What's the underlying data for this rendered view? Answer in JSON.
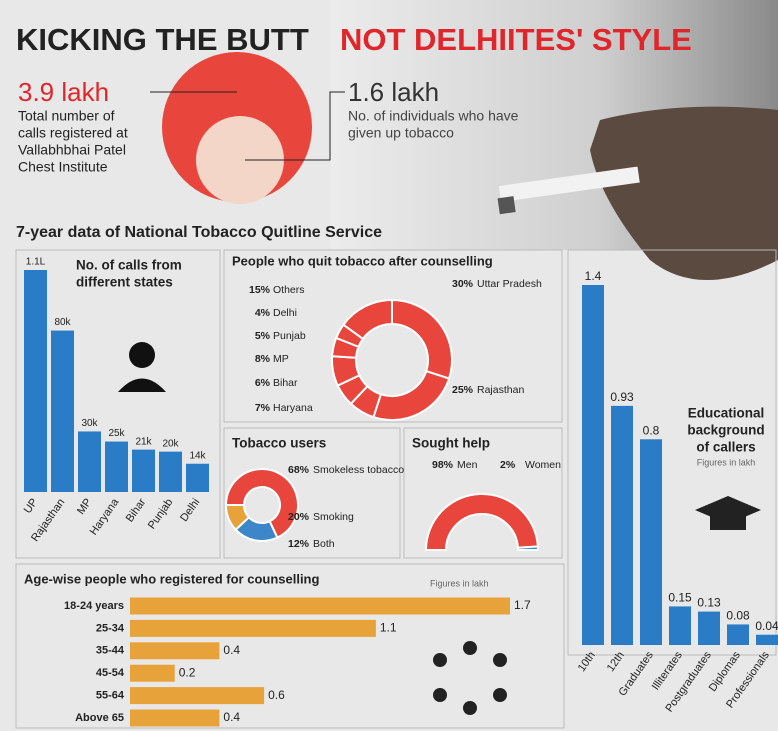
{
  "header": {
    "title_black": "KICKING THE BUTT",
    "title_red": "NOT DELHIITES' STYLE",
    "stats": [
      {
        "value": "3.9 lakh",
        "lines": [
          "Total number of",
          "calls registered at",
          "Vallabhbhai Patel",
          "Chest Institute"
        ]
      },
      {
        "value": "1.6 lakh",
        "lines": [
          "No. of individuals who have",
          "given up tobacco"
        ]
      }
    ],
    "section_title": "7-year data of National Tobacco Quitline Service"
  },
  "chart_data": [
    {
      "type": "bar",
      "title": [
        "No. of calls from",
        "different states"
      ],
      "categories": [
        "UP",
        "Rajasthan",
        "MP",
        "Haryana",
        "Bihar",
        "Punjab",
        "Delhi"
      ],
      "values": [
        110000,
        80000,
        30000,
        25000,
        21000,
        20000,
        14000
      ],
      "value_labels": [
        "1.1L",
        "80k",
        "30k",
        "25k",
        "21k",
        "20k",
        "14k"
      ],
      "color": "#2a7cc7"
    },
    {
      "type": "donut",
      "title": "People who quit tobacco after counselling",
      "categories": [
        "Uttar Pradesh",
        "Rajasthan",
        "Haryana",
        "Bihar",
        "MP",
        "Punjab",
        "Delhi",
        "Others"
      ],
      "values": [
        30,
        25,
        7,
        6,
        8,
        5,
        4,
        15
      ],
      "value_labels": [
        "30%",
        "25%",
        "7%",
        "6%",
        "8%",
        "5%",
        "4%",
        "15%"
      ],
      "color": "#e8453c"
    },
    {
      "type": "donut",
      "title": "Tobacco users",
      "categories": [
        "Smokeless tobacco",
        "Smoking",
        "Both"
      ],
      "values": [
        68,
        20,
        12
      ],
      "value_labels": [
        "68%",
        "20%",
        "12%"
      ],
      "colors": [
        "#e8453c",
        "#3d86c9",
        "#e8a23a"
      ]
    },
    {
      "type": "semi-donut",
      "title": "Sought help",
      "categories": [
        "Men",
        "Women"
      ],
      "values": [
        98,
        2
      ],
      "value_labels": [
        "98%",
        "2%"
      ],
      "colors": [
        "#e8453c",
        "#3d86c9"
      ]
    },
    {
      "type": "bar",
      "title": [
        "Educational",
        "background",
        "of callers"
      ],
      "note": "Figures in lakh",
      "categories": [
        "10th",
        "12th",
        "Graduates",
        "Illiterates",
        "Postgraduates",
        "Diplomas",
        "Professionals"
      ],
      "values": [
        1.4,
        0.93,
        0.8,
        0.15,
        0.13,
        0.08,
        0.04
      ],
      "color": "#2a7cc7"
    },
    {
      "type": "hbar",
      "title": "Age-wise people who registered for counselling",
      "note": "Figures in lakh",
      "categories": [
        "18-24 years",
        "25-34",
        "35-44",
        "45-54",
        "55-64",
        "Above 65"
      ],
      "values": [
        1.7,
        1.1,
        0.4,
        0.2,
        0.6,
        0.4
      ],
      "color": "#e8a23a"
    }
  ]
}
